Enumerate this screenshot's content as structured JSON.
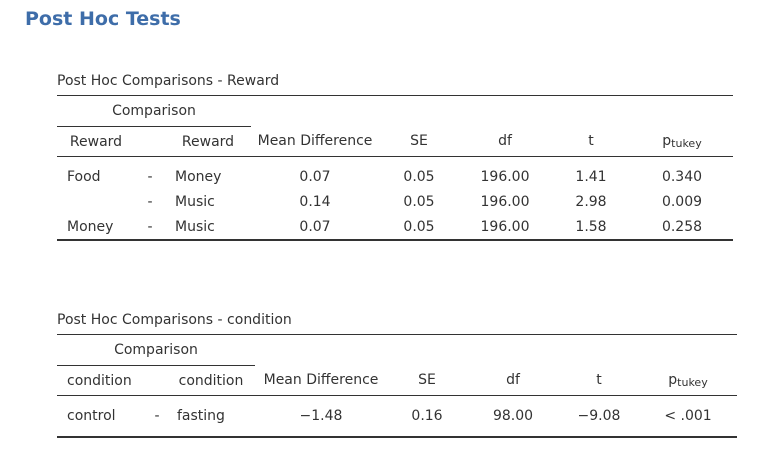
{
  "heading": "Post Hoc Tests",
  "tables": [
    {
      "caption": "Post Hoc Comparisons - Reward",
      "group_header": "Comparison",
      "columns": {
        "left": "Reward",
        "right": "Reward",
        "mean_diff": "Mean Difference",
        "se": "SE",
        "df": "df",
        "t": "t",
        "p_main": "p",
        "p_sub": "tukey"
      },
      "rows": [
        {
          "left": "Food",
          "sep": "-",
          "right": "Money",
          "mean_diff": "0.07",
          "se": "0.05",
          "df": "196.00",
          "t": "1.41",
          "p": "0.340"
        },
        {
          "left": "",
          "sep": "-",
          "right": "Music",
          "mean_diff": "0.14",
          "se": "0.05",
          "df": "196.00",
          "t": "2.98",
          "p": "0.009"
        },
        {
          "left": "Money",
          "sep": "-",
          "right": "Music",
          "mean_diff": "0.07",
          "se": "0.05",
          "df": "196.00",
          "t": "1.58",
          "p": "0.258"
        }
      ]
    },
    {
      "caption": "Post Hoc Comparisons - condition",
      "group_header": "Comparison",
      "columns": {
        "left": "condition",
        "right": "condition",
        "mean_diff": "Mean Difference",
        "se": "SE",
        "df": "df",
        "t": "t",
        "p_main": "p",
        "p_sub": "tukey"
      },
      "rows": [
        {
          "left": "control",
          "sep": "-",
          "right": "fasting",
          "mean_diff": "−1.48",
          "se": "0.16",
          "df": "98.00",
          "t": "−9.08",
          "p": "< .001"
        }
      ]
    }
  ]
}
